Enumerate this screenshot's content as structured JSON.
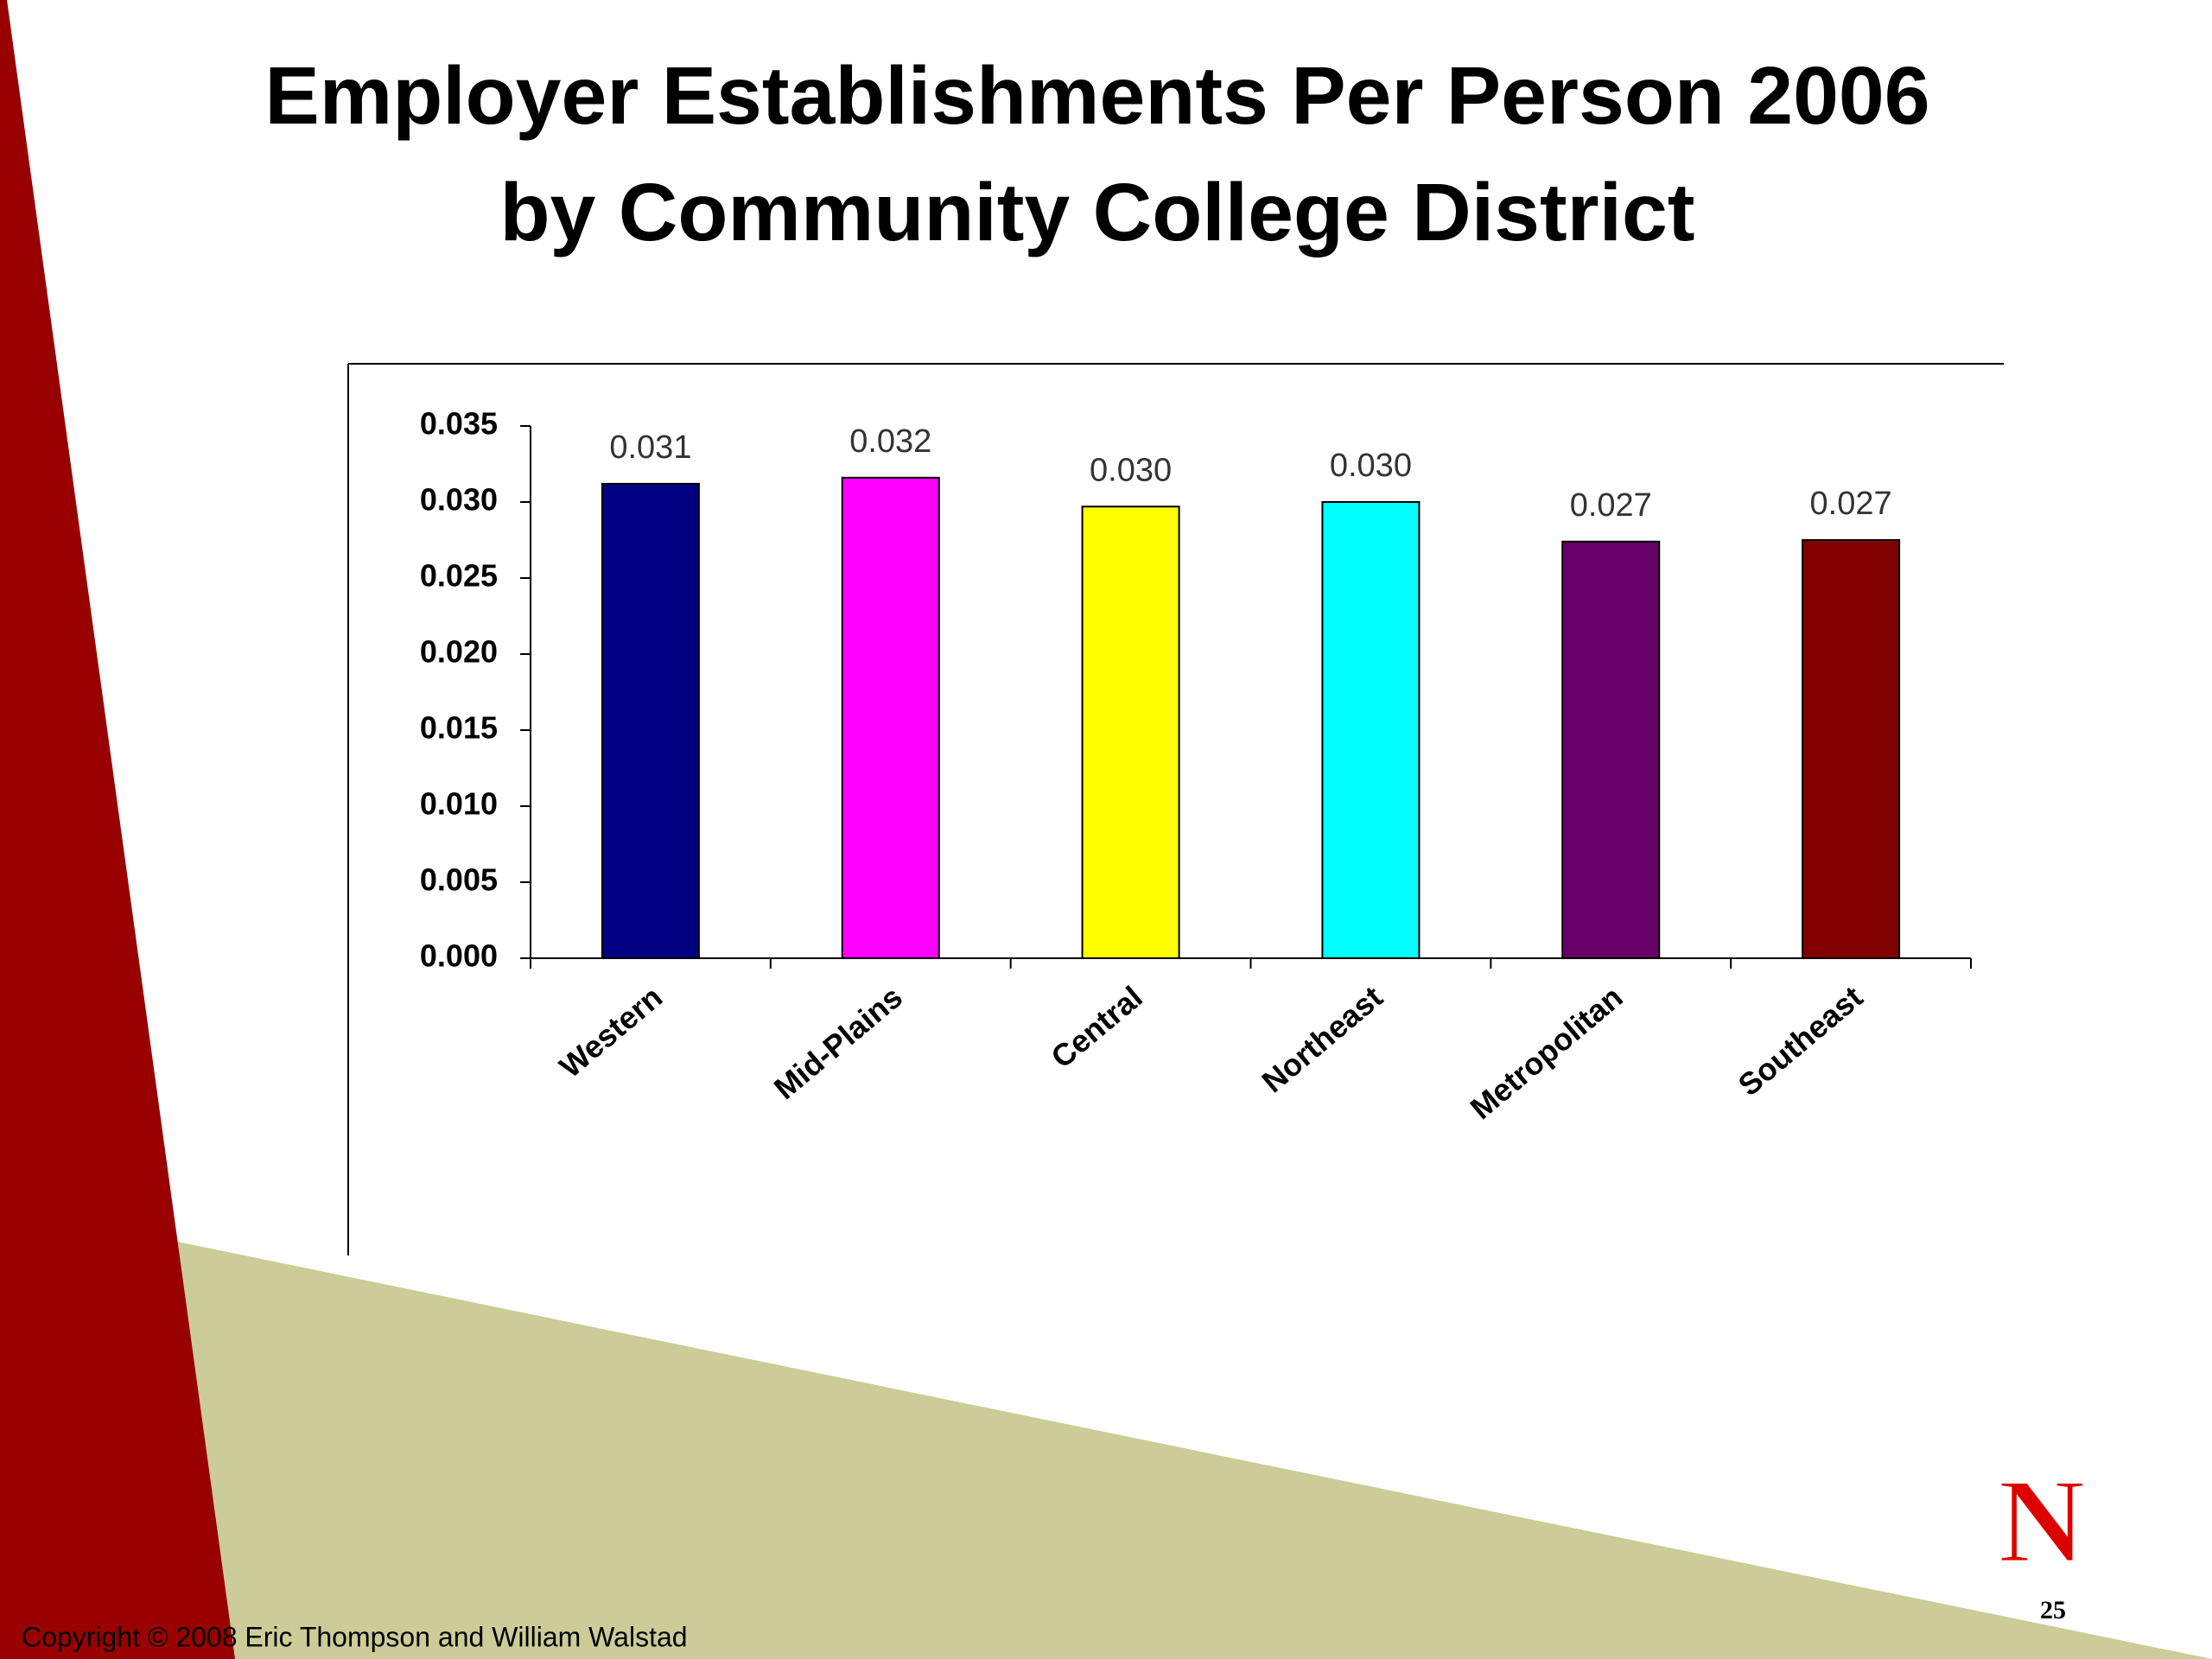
{
  "chart_data": {
    "type": "bar",
    "title": [
      "Employer Establishments Per Person 2006",
      "by Community College District"
    ],
    "categories": [
      "Western",
      "Mid-Plains",
      "Central",
      "Northeast",
      "Metropolitan",
      "Southeast"
    ],
    "values": [
      0.0312,
      0.0316,
      0.0297,
      0.03,
      0.0274,
      0.0275
    ],
    "value_labels": [
      "0.031",
      "0.032",
      "0.030",
      "0.030",
      "0.027",
      "0.027"
    ],
    "colors": [
      "#000080",
      "#ff00ff",
      "#ffff00",
      "#00ffff",
      "#660066",
      "#800000"
    ],
    "ylim": [
      0,
      0.035
    ],
    "yticks": [
      {
        "value": 0,
        "label": "0.000"
      },
      {
        "value": 0.005,
        "label": "0.005"
      },
      {
        "value": 0.01,
        "label": "0.010"
      },
      {
        "value": 0.015,
        "label": "0.015"
      },
      {
        "value": 0.02,
        "label": "0.020"
      },
      {
        "value": 0.025,
        "label": "0.025"
      },
      {
        "value": 0.03,
        "label": "0.030"
      },
      {
        "value": 0.035,
        "label": "0.035"
      }
    ],
    "grid": false
  },
  "footer": {
    "copyright": "Copyright © 2008 Eric Thompson and William Walstad",
    "page": "25",
    "logo": "N"
  }
}
